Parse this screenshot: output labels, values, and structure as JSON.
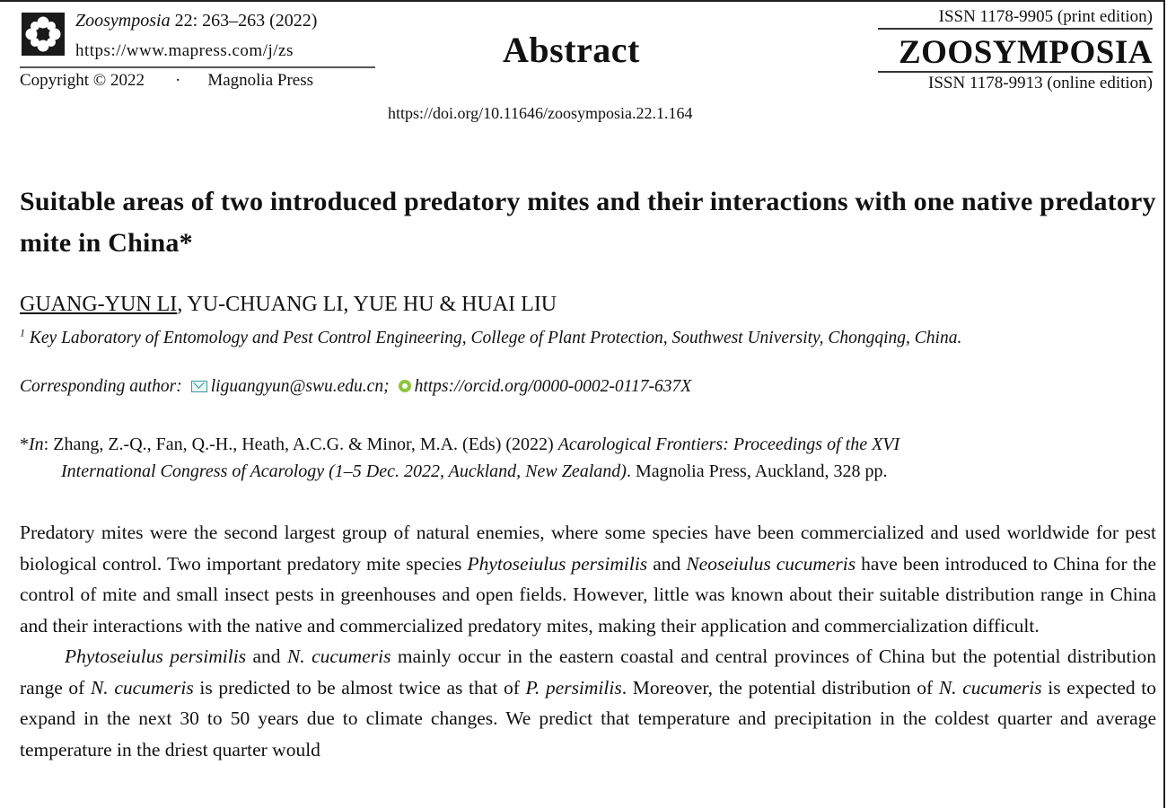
{
  "header": {
    "journal_name": "Zoosymposia",
    "journal_citation": " 22: 263–263 (2022)",
    "url": "https://www.mapress.com/j/zs",
    "copyright": "Copyright © 2022",
    "bullet": "·",
    "publisher": "Magnolia Press",
    "section_heading": "Abstract",
    "doi": "https://doi.org/10.11646/zoosymposia.22.1.164",
    "issn_print": "ISSN 1178-9905 (print edition)",
    "brand": "ZOOSYMPOSIA",
    "issn_online": "ISSN 1178-9913 (online edition)",
    "logo_icon": "flower-logo-icon"
  },
  "article": {
    "title": "Suitable areas of two introduced predatory mites and their interactions with one native predatory mite in China*",
    "authors_first": "GUANG-YUN LI",
    "authors_rest": ", YU-CHUANG LI, YUE HU & HUAI LIU",
    "affiliation_mark": "1",
    "affiliation": " Key Laboratory of Entomology and Pest Control Engineering, College of Plant Protection, Southwest University, Chongqing, China.",
    "corresponding_label": "Corresponding author:",
    "email": "liguangyun@swu.edu.cn;",
    "orcid": "https://orcid.org/0000-0002-0117-637X",
    "in_prefix": "*",
    "in_label": "In",
    "in_editors": ": Zhang, Z.-Q., Fan, Q.-H., Heath, A.C.G. & Minor, M.A. (Eds) (2022) ",
    "in_book_title_1": "Acarological Frontiers: Proceedings of the XVI",
    "in_book_title_2": "International Congress of Acarology (1–5 Dec. 2022, Auckland, New Zealand)",
    "in_publisher": ". Magnolia Press, Auckland, 328 pp."
  },
  "body": {
    "p1_a": "Predatory mites were the second largest group of natural enemies, where  some species have been commercialized and used worldwide for pest biological control. Two important predatory mite species ",
    "p1_sp1": "Phytoseiulus persimilis",
    "p1_b": " and ",
    "p1_sp2": "Neoseiulus cucumeris",
    "p1_c": " have been introduced to China for the control of mite and small insect pests in greenhouses and open fields. However, little was known about their suitable distribution range in China and their interactions with the native and commercialized predatory mites, making their application and commercialization difficult.",
    "p2_sp1": "Phytoseiulus persimilis",
    "p2_a": " and ",
    "p2_sp2": "N. cucumeris",
    "p2_b": " mainly occur in the eastern coastal and central provinces of China but the potential distribution range of ",
    "p2_sp3": "N. cucumeris",
    "p2_c": " is predicted to be almost twice as that of ",
    "p2_sp4": "P. persimilis",
    "p2_d": ". Moreover, the potential distribution of ",
    "p2_sp5": "N. cucumeris",
    "p2_e": " is expected to expand in the next 30 to 50 years due to climate changes. We predict that temperature and precipitation in the coldest quarter and average temperature in the driest quarter would"
  }
}
